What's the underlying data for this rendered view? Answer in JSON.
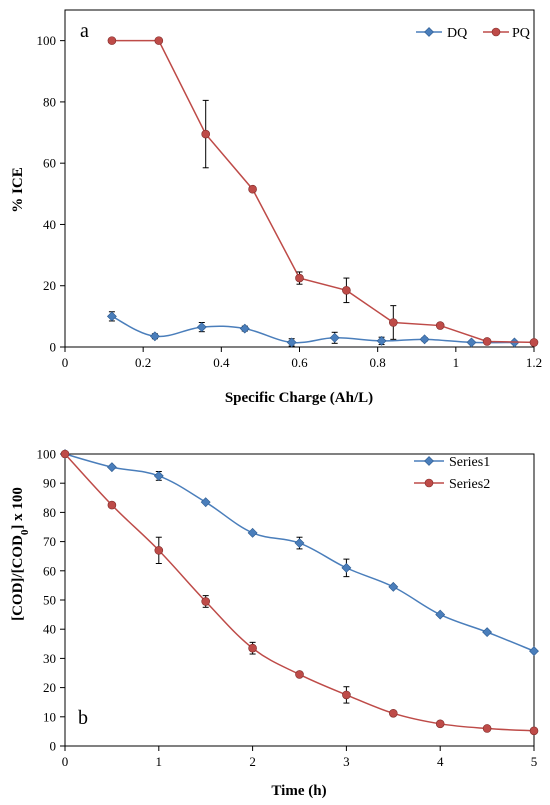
{
  "chart_data": [
    {
      "panel_label": "a",
      "type": "line",
      "xlabel": "Specific Charge (Ah/L)",
      "ylabel": "% ICE",
      "xlim": [
        0,
        1.2
      ],
      "ylim": [
        0,
        110
      ],
      "xticks": [
        "0",
        "0.2",
        "0.4",
        "0.6",
        "0.8",
        "1",
        "1.2"
      ],
      "yticks": [
        "0",
        "20",
        "40",
        "60",
        "80",
        "100"
      ],
      "grid": false,
      "legend_position": "top-right",
      "series": [
        {
          "name": "DQ",
          "color": "#4a7ebb",
          "marker": "diamond",
          "smooth": true,
          "x": [
            0.12,
            0.23,
            0.35,
            0.46,
            0.58,
            0.69,
            0.81,
            0.92,
            1.04,
            1.15
          ],
          "y": [
            10.0,
            3.5,
            6.5,
            6.0,
            1.5,
            3.0,
            2.0,
            2.5,
            1.5,
            1.5
          ],
          "err": [
            1.5,
            0.8,
            1.5,
            0.8,
            1.2,
            1.8,
            1.2,
            0.6,
            0.4,
            0.3
          ]
        },
        {
          "name": "PQ",
          "color": "#be4b48",
          "marker": "circle",
          "smooth": false,
          "x": [
            0.12,
            0.24,
            0.36,
            0.48,
            0.6,
            0.72,
            0.84,
            0.96,
            1.08,
            1.2
          ],
          "y": [
            100,
            100,
            69.5,
            51.5,
            22.5,
            18.5,
            8.0,
            7.0,
            1.8,
            1.5
          ],
          "err": [
            0,
            0,
            11,
            0,
            2,
            4,
            5.5,
            0,
            0,
            0
          ]
        }
      ]
    },
    {
      "panel_label": "b",
      "type": "line",
      "xlabel": "Time  (h)",
      "ylabel": "[COD]/[COD0] x 100",
      "ylabel_main": "[COD]/[COD",
      "ylabel_sub": "0",
      "ylabel_tail": "] x 100",
      "xlim": [
        0,
        5
      ],
      "ylim": [
        0,
        100
      ],
      "xticks": [
        "0",
        "1",
        "2",
        "3",
        "4",
        "5"
      ],
      "yticks": [
        "0",
        "10",
        "20",
        "30",
        "40",
        "50",
        "60",
        "70",
        "80",
        "90",
        "100"
      ],
      "grid": false,
      "legend_position": "top-right",
      "series": [
        {
          "name": "Series1",
          "color": "#4a7ebb",
          "marker": "diamond",
          "smooth": true,
          "x": [
            0,
            0.5,
            1,
            1.5,
            2,
            2.5,
            3,
            3.5,
            4,
            4.5,
            5
          ],
          "y": [
            100,
            95.5,
            92.5,
            83.5,
            73,
            69.5,
            61,
            54.5,
            45,
            39,
            32.5
          ],
          "err": [
            0,
            0,
            1.5,
            0,
            0,
            2,
            3,
            0,
            0,
            0,
            0
          ]
        },
        {
          "name": "Series2",
          "color": "#be4b48",
          "marker": "circle",
          "smooth": true,
          "x": [
            0,
            0.5,
            1,
            1.5,
            2,
            2.5,
            3,
            3.5,
            4,
            4.5,
            5
          ],
          "y": [
            100,
            82.5,
            67,
            49.5,
            33.5,
            24.5,
            17.5,
            11.2,
            7.6,
            6.0,
            5.2
          ],
          "err": [
            0,
            0,
            4.5,
            2,
            2,
            0,
            2.8,
            0,
            0,
            0,
            0
          ]
        }
      ]
    }
  ]
}
